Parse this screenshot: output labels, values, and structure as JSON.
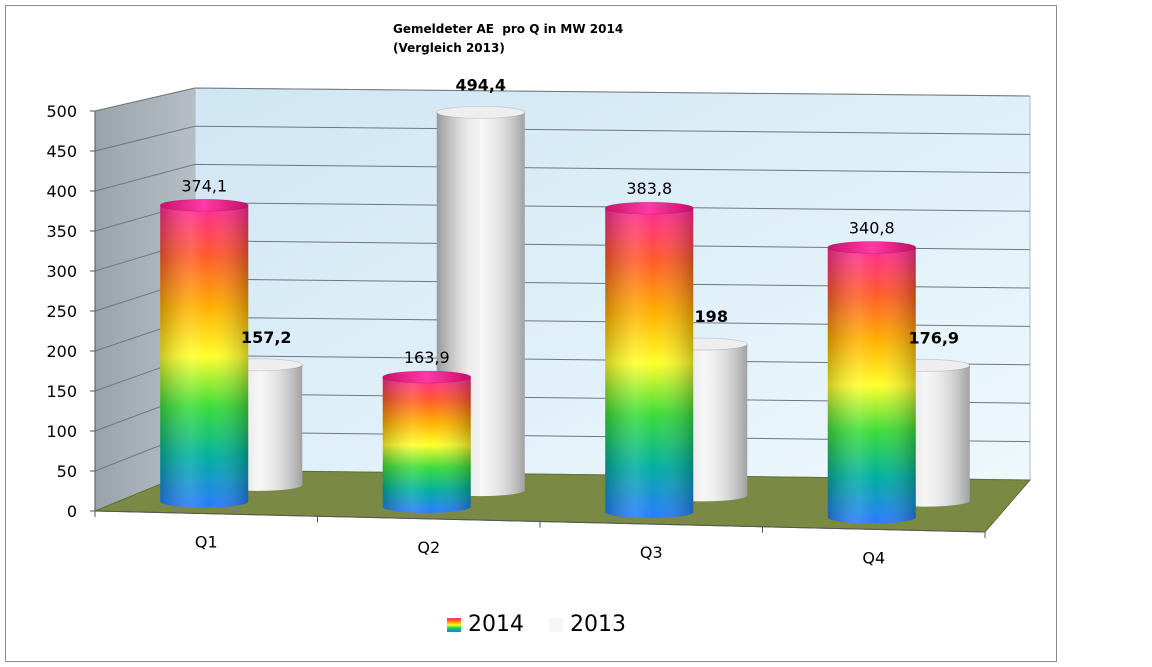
{
  "chart_data": {
    "type": "bar",
    "style": "3d-cylinder",
    "title": "Gemeldeter AE  pro Q in MW 2014",
    "subtitle": "(Vergleich 2013)",
    "categories": [
      "Q1",
      "Q2",
      "Q3",
      "Q4"
    ],
    "series": [
      {
        "name": "2014",
        "values": [
          374.1,
          163.9,
          383.8,
          340.8
        ],
        "labels": [
          "374,1",
          "163,9",
          "383,8",
          "340,8"
        ],
        "fill": "rainbow-gradient"
      },
      {
        "name": "2013",
        "values": [
          157.2,
          494.4,
          198,
          176.9
        ],
        "labels": [
          "157,2",
          "494,4",
          "198",
          "176,9"
        ],
        "fill": "#e8e8e8"
      }
    ],
    "ylim": [
      0,
      500
    ],
    "yticks": [
      "0",
      "50",
      "100",
      "150",
      "200",
      "250",
      "300",
      "350",
      "400",
      "450",
      "500"
    ],
    "xlabel": "",
    "ylabel": "",
    "grid": true,
    "legend_position": "bottom"
  },
  "colors": {
    "floor": "#7a8a44",
    "back_wall": "#dff0fa",
    "side_wall": "#a6aeb5",
    "rainbow": [
      "#ff2a9a",
      "#ff5a2a",
      "#ffae00",
      "#ffff2a",
      "#3adc3a",
      "#00b0a0",
      "#2a7aff"
    ],
    "grey": [
      "#c4c4c4",
      "#f6f6f6",
      "#d6d6d6"
    ]
  }
}
